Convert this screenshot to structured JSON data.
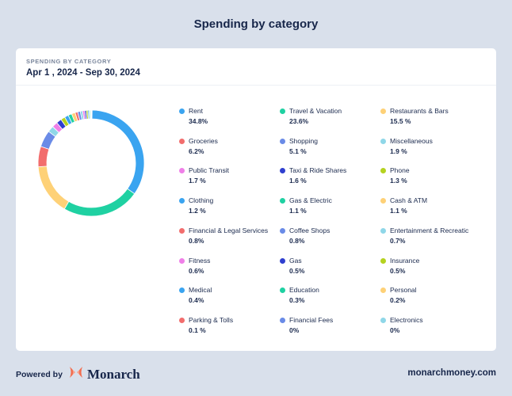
{
  "header": {
    "title": "Spending by category"
  },
  "card": {
    "section_label": "SPENDING BY CATEGORY",
    "date_range": "Apr 1 , 2024 - Sep 30, 2024"
  },
  "categories": [
    {
      "name": "Rent",
      "pct": "34.8%",
      "value": 34.8,
      "color": "#3aa4f0",
      "icon": "dot-icon"
    },
    {
      "name": "Travel & Vacation",
      "pct": "23.6%",
      "value": 23.6,
      "color": "#1fd1a2",
      "icon": "dot-icon"
    },
    {
      "name": "Restaurants & Bars",
      "pct": "15.5 %",
      "value": 15.5,
      "color": "#fed177",
      "icon": "dot-icon"
    },
    {
      "name": "Groceries",
      "pct": "6.2%",
      "value": 6.2,
      "color": "#f26d6d",
      "icon": "dot-icon"
    },
    {
      "name": "Shopping",
      "pct": "5.1 %",
      "value": 5.1,
      "color": "#6a8be7",
      "icon": "dot-icon"
    },
    {
      "name": "Miscellaneous",
      "pct": "1.9 %",
      "value": 1.9,
      "color": "#8fd7e8",
      "icon": "dot-icon"
    },
    {
      "name": "Public Transit",
      "pct": "1.7 %",
      "value": 1.7,
      "color": "#ef7fe8",
      "icon": "dot-icon"
    },
    {
      "name": "Taxi & Ride Shares",
      "pct": "1.6 %",
      "value": 1.6,
      "color": "#2f3fcf",
      "icon": "dot-icon"
    },
    {
      "name": "Phone",
      "pct": "1.3 %",
      "value": 1.3,
      "color": "#b5d21f",
      "icon": "dot-icon"
    },
    {
      "name": "Clothing",
      "pct": "1.2 %",
      "value": 1.2,
      "color": "#3aa4f0",
      "icon": "dot-icon"
    },
    {
      "name": "Gas & Electric",
      "pct": "1.1  %",
      "value": 1.1,
      "color": "#1fd1a2",
      "icon": "dot-icon"
    },
    {
      "name": "Cash & ATM",
      "pct": "1.1  %",
      "value": 1.1,
      "color": "#fed177",
      "icon": "dot-icon"
    },
    {
      "name": "Financial & Legal Services",
      "pct": "0.8%",
      "value": 0.8,
      "color": "#f26d6d",
      "icon": "dot-icon"
    },
    {
      "name": "Coffee Shops",
      "pct": "0.8%",
      "value": 0.8,
      "color": "#6a8be7",
      "icon": "dot-icon"
    },
    {
      "name": "Entertainment & Recreatic",
      "pct": "0.7%",
      "value": 0.7,
      "color": "#8fd7e8",
      "icon": "dot-icon"
    },
    {
      "name": "Fitness",
      "pct": "0.6%",
      "value": 0.6,
      "color": "#ef7fe8",
      "icon": "dot-icon"
    },
    {
      "name": "Gas",
      "pct": "0.5%",
      "value": 0.5,
      "color": "#2f3fcf",
      "icon": "dot-icon"
    },
    {
      "name": "Insurance",
      "pct": "0.5%",
      "value": 0.5,
      "color": "#b5d21f",
      "icon": "dot-icon"
    },
    {
      "name": "Medical",
      "pct": "0.4%",
      "value": 0.4,
      "color": "#3aa4f0",
      "icon": "dot-icon"
    },
    {
      "name": "Education",
      "pct": "0.3%",
      "value": 0.3,
      "color": "#1fd1a2",
      "icon": "dot-icon"
    },
    {
      "name": "Personal",
      "pct": "0.2%",
      "value": 0.2,
      "color": "#fed177",
      "icon": "dot-icon"
    },
    {
      "name": "Parking & Tolls",
      "pct": "0.1 %",
      "value": 0.1,
      "color": "#f26d6d",
      "icon": "dot-icon"
    },
    {
      "name": "Financial Fees",
      "pct": "0%",
      "value": 0,
      "color": "#6a8be7",
      "icon": "dot-icon"
    },
    {
      "name": "Electronics",
      "pct": "0%",
      "value": 0,
      "color": "#8fd7e8",
      "icon": "dot-icon"
    }
  ],
  "chart_data": {
    "type": "pie",
    "style": "donut",
    "categories": [
      "Rent",
      "Travel & Vacation",
      "Restaurants & Bars",
      "Groceries",
      "Shopping",
      "Miscellaneous",
      "Public Transit",
      "Taxi & Ride Shares",
      "Phone",
      "Clothing",
      "Gas & Electric",
      "Cash & ATM",
      "Financial & Legal Services",
      "Coffee Shops",
      "Entertainment & Recreatic",
      "Fitness",
      "Gas",
      "Insurance",
      "Medical",
      "Education",
      "Personal",
      "Parking & Tolls",
      "Financial Fees",
      "Electronics"
    ],
    "values": [
      34.8,
      23.6,
      15.5,
      6.2,
      5.1,
      1.9,
      1.7,
      1.6,
      1.3,
      1.2,
      1.1,
      1.1,
      0.8,
      0.8,
      0.7,
      0.6,
      0.5,
      0.5,
      0.4,
      0.3,
      0.2,
      0.1,
      0,
      0
    ],
    "start_angle": "top",
    "direction": "clockwise",
    "legend": "right"
  },
  "footer": {
    "powered_by": "Powered by",
    "brand_name": "Monarch",
    "brand_logo_icon": "monarch-butterfly-icon",
    "url": "monarchmoney.com"
  },
  "colors": {
    "background": "#d9e0eb",
    "card": "#ffffff",
    "text": "#17264a",
    "logo": "#f26d4f"
  }
}
